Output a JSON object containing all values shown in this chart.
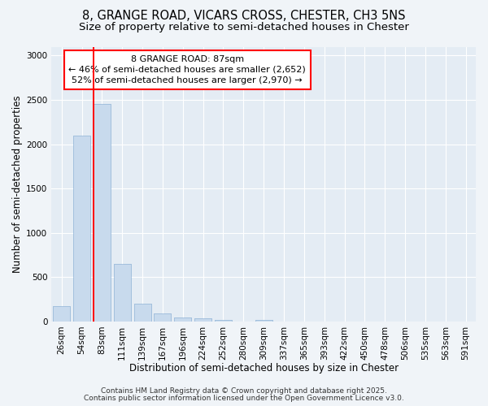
{
  "title_line1": "8, GRANGE ROAD, VICARS CROSS, CHESTER, CH3 5NS",
  "title_line2": "Size of property relative to semi-detached houses in Chester",
  "xlabel": "Distribution of semi-detached houses by size in Chester",
  "ylabel": "Number of semi-detached properties",
  "categories": [
    "26sqm",
    "54sqm",
    "83sqm",
    "111sqm",
    "139sqm",
    "167sqm",
    "196sqm",
    "224sqm",
    "252sqm",
    "280sqm",
    "309sqm",
    "337sqm",
    "365sqm",
    "393sqm",
    "422sqm",
    "450sqm",
    "478sqm",
    "506sqm",
    "535sqm",
    "563sqm",
    "591sqm"
  ],
  "values": [
    175,
    2100,
    2450,
    650,
    200,
    90,
    40,
    35,
    20,
    0,
    20,
    0,
    0,
    0,
    0,
    0,
    0,
    0,
    0,
    0,
    0
  ],
  "bar_color": "#c8daed",
  "bar_edge_color": "#a0bedc",
  "red_line_x": 2.0,
  "red_line_label": "8 GRANGE ROAD: 87sqm",
  "annotation_line2": "← 46% of semi-detached houses are smaller (2,652)",
  "annotation_line3": "52% of semi-detached houses are larger (2,970) →",
  "ylim": [
    0,
    3100
  ],
  "yticks": [
    0,
    500,
    1000,
    1500,
    2000,
    2500,
    3000
  ],
  "footnote1": "Contains HM Land Registry data © Crown copyright and database right 2025.",
  "footnote2": "Contains public sector information licensed under the Open Government Licence v3.0.",
  "background_color": "#f0f4f8",
  "plot_bg_color": "#e4ecf4",
  "grid_color": "#ffffff",
  "title_fontsize": 10.5,
  "subtitle_fontsize": 9.5,
  "axis_label_fontsize": 8.5,
  "tick_fontsize": 7.5,
  "annotation_fontsize": 8,
  "footnote_fontsize": 6.5
}
